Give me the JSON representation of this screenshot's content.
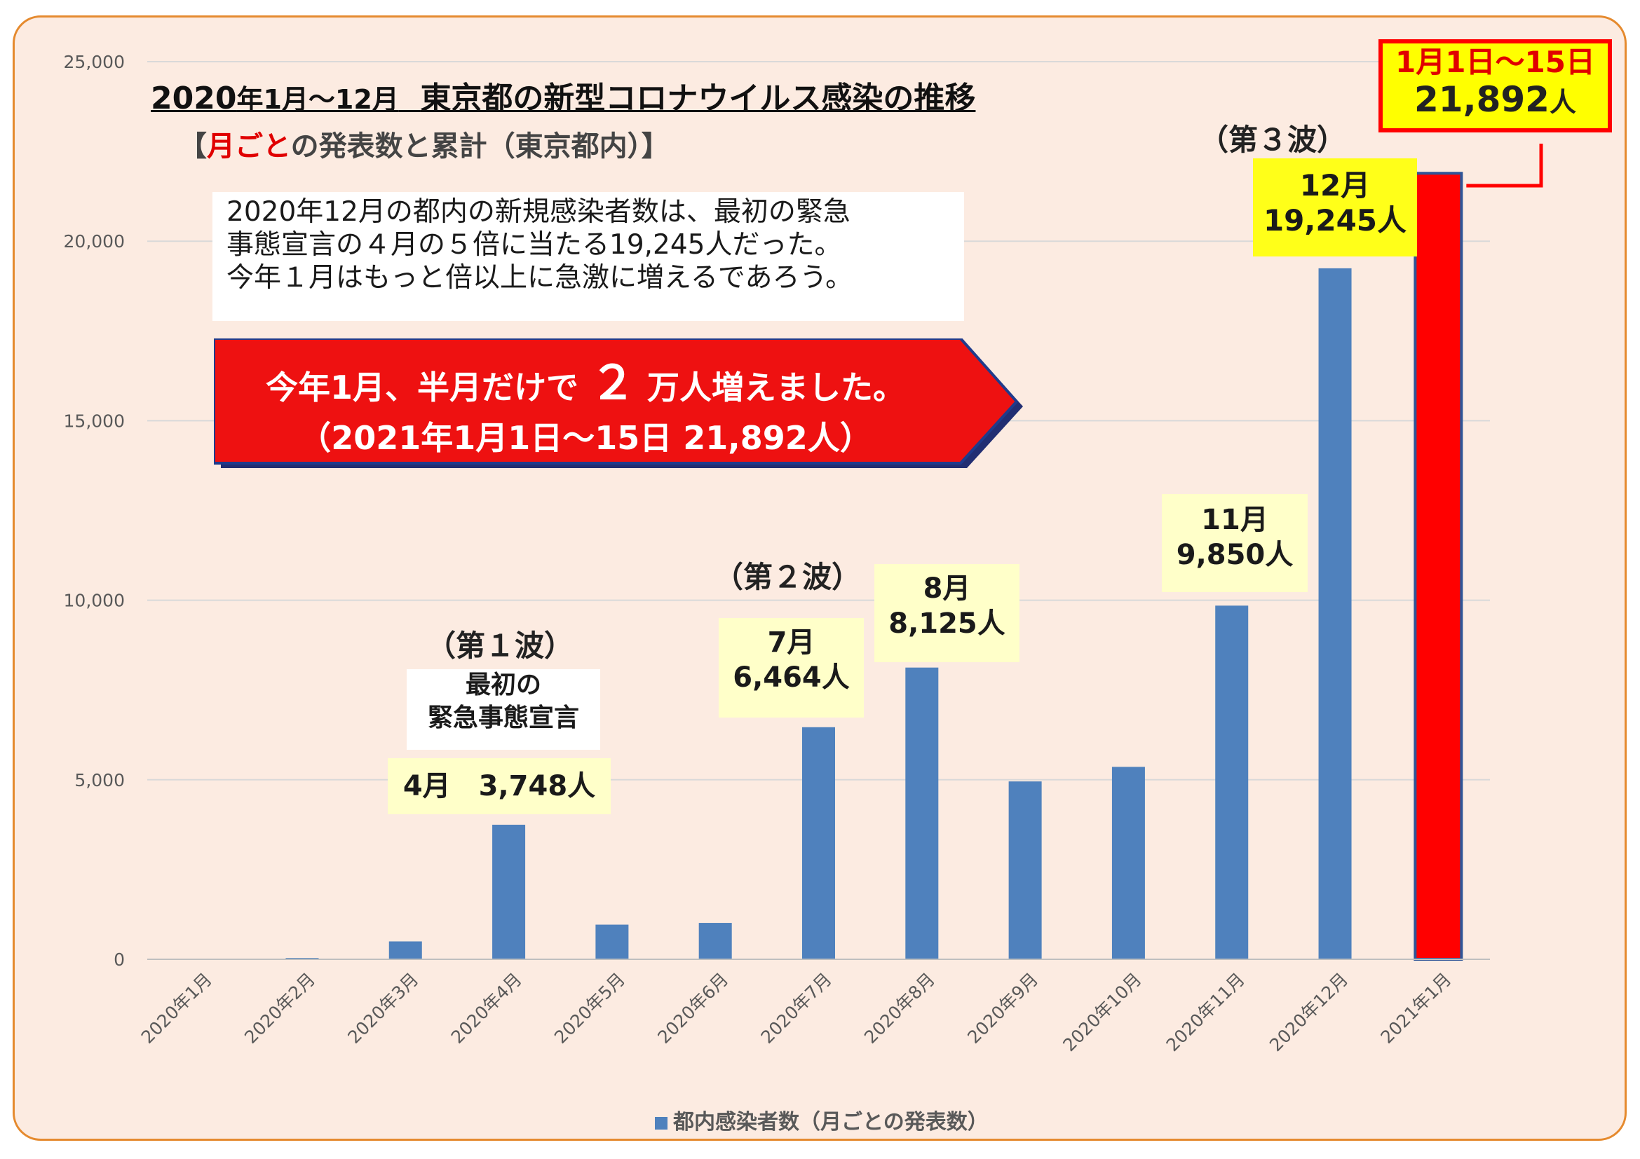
{
  "chart_data": {
    "type": "bar",
    "title": "2020年1月～12月　東京都の新型コロナウイルス感染の推移",
    "title_parts": [
      "2020",
      "年1月～12月",
      "東京都の新型コロナウイルス感染の推移"
    ],
    "subtitle_parts": [
      "【",
      "月ごと",
      "の発表数と累計（東京都内）】"
    ],
    "categories": [
      "2020年1月",
      "2020年2月",
      "2020年3月",
      "2020年4月",
      "2020年5月",
      "2020年6月",
      "2020年7月",
      "2020年8月",
      "2020年9月",
      "2020年10月",
      "2020年11月",
      "2020年12月",
      "2021年1月"
    ],
    "series": [
      {
        "name": "都内感染者数（月ごとの発表数）",
        "values": [
          2,
          37,
          498,
          3748,
          965,
          1014,
          6464,
          8125,
          4954,
          5359,
          9850,
          19245,
          21892
        ],
        "color": "#4f81bd",
        "highlight_index": 12,
        "highlight_color": "#ff0000"
      }
    ],
    "ylim": [
      0,
      25000
    ],
    "yticks": [
      "0",
      "5,000",
      "10,000",
      "15,000",
      "20,000",
      "25,000"
    ],
    "grid": true,
    "legend_position": "bottom"
  },
  "note": {
    "lines": [
      "2020年12月の都内の新規感染者数は、最初の緊急",
      "事態宣言の４月の５倍に当たる19,245人だった。",
      "今年１月はもっと倍以上に急激に増えるであろう。"
    ]
  },
  "banner": {
    "line1_a": "今年1月、半月だけで ",
    "line1_b": "２",
    "line1_c": " 万人増えました。",
    "line2": "（2021年1月1日～15日 21,892人）",
    "fill_color": "#ee1111"
  },
  "annotations": {
    "wave1": "（第１波）",
    "emergency": [
      "最初の",
      "緊急事態宣言"
    ],
    "apr": "4月　3,748人",
    "wave2": "（第２波）",
    "jul": [
      "7月",
      "6,464人"
    ],
    "aug": [
      "8月",
      "8,125人"
    ],
    "nov": [
      "11月",
      "9,850人"
    ],
    "wave3": "（第３波）",
    "dec": [
      "12月",
      "19,245人"
    ]
  },
  "highlight": {
    "line1": "1月1日～15日",
    "value": "21,892",
    "unit": "人"
  }
}
